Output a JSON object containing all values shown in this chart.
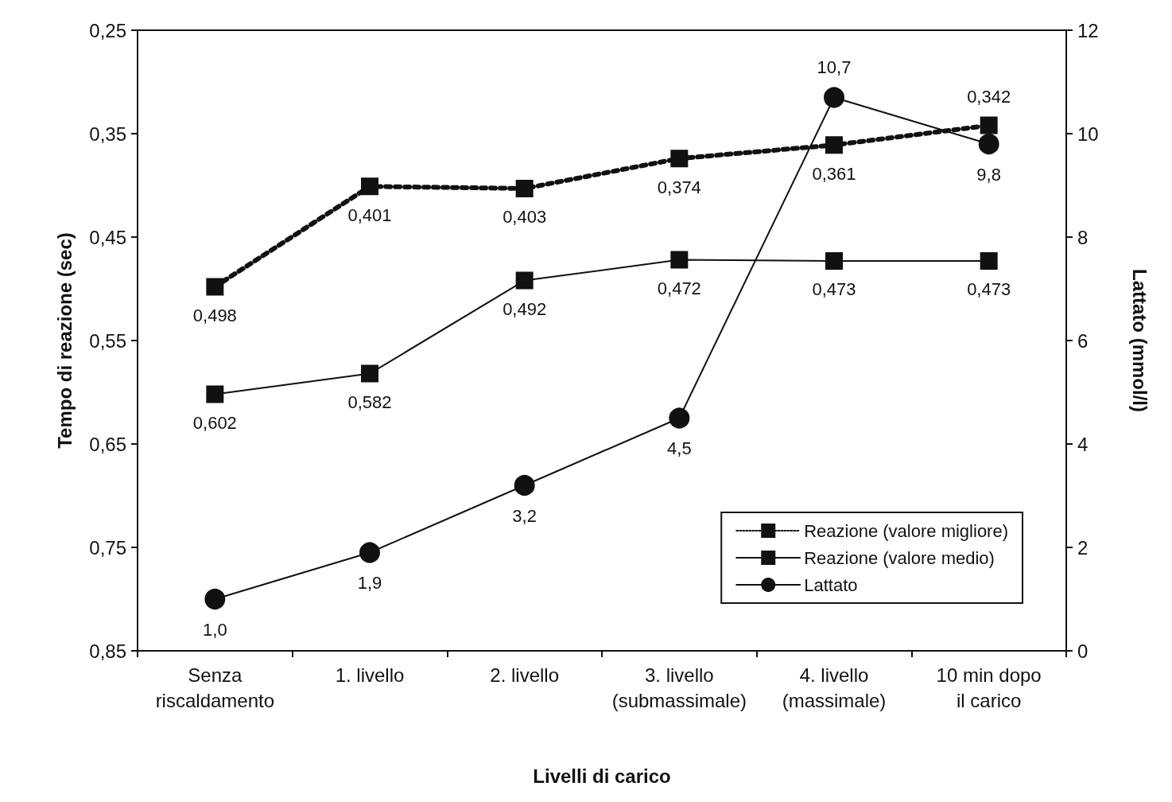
{
  "chart_data": {
    "type": "line",
    "xlabel": "Livelli di carico",
    "ylabel": "Tempo di reazione (sec)",
    "y2label": "Lattato (mmol/l)",
    "categories": [
      "Senza\nriscaldamento",
      "1. livello",
      "2. livello",
      "3. livello\n(submassimale)",
      "4. livello\n(massimale)",
      "10 min dopo\nil carico"
    ],
    "ylim": [
      0.85,
      0.25
    ],
    "yticks": [
      {
        "value": 0.25,
        "label": "0,25"
      },
      {
        "value": 0.35,
        "label": "0,35"
      },
      {
        "value": 0.45,
        "label": "0,45"
      },
      {
        "value": 0.55,
        "label": "0,55"
      },
      {
        "value": 0.65,
        "label": "0,65"
      },
      {
        "value": 0.75,
        "label": "0,75"
      },
      {
        "value": 0.85,
        "label": "0,85"
      }
    ],
    "y2lim": [
      0,
      12
    ],
    "y2ticks": [
      0,
      2,
      4,
      6,
      8,
      10,
      12
    ],
    "series": [
      {
        "name": "Reazione (valore migliore)",
        "color": "#111111",
        "marker": "square",
        "line_style": "dotted",
        "values": [
          0.498,
          0.401,
          0.403,
          0.374,
          0.361,
          0.342
        ],
        "value_labels": [
          "0,498",
          "0,401",
          "0,403",
          "0,374",
          "0,361",
          "0,342"
        ]
      },
      {
        "name": "Reazione (valore medio)",
        "color": "#111111",
        "marker": "square",
        "line_style": "solid",
        "values": [
          0.602,
          0.582,
          0.492,
          0.472,
          0.473,
          0.473
        ],
        "value_labels": [
          "0,602",
          "0,582",
          "0,492",
          "0,472",
          "0,473",
          "0,473"
        ]
      },
      {
        "name": "Lattato",
        "color": "#111111",
        "marker": "circle",
        "line_style": "solid",
        "axis": "y2",
        "values": [
          1.0,
          1.9,
          3.2,
          4.5,
          10.7,
          9.8
        ],
        "value_labels": [
          "1,0",
          "1,9",
          "3,2",
          "4,5",
          "10,7",
          "9,8"
        ]
      }
    ],
    "grid": false,
    "legend": "bottom right"
  }
}
